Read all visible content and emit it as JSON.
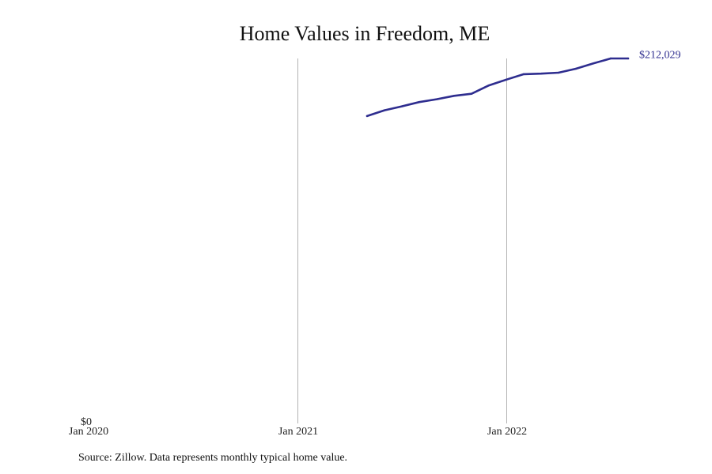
{
  "title": "Home Values in Freedom, ME",
  "source": "Source: Zillow. Data represents monthly typical home value.",
  "colors": {
    "line": "#2e2d8f",
    "gridline": "#b3b3b3",
    "text": "#111111"
  },
  "chart_data": {
    "type": "line",
    "title": "Home Values in Freedom, ME",
    "xlabel": "",
    "ylabel": "",
    "x_ticks": [
      {
        "date": "2020-01",
        "label": "Jan 2020"
      },
      {
        "date": "2021-01",
        "label": "Jan 2021"
      },
      {
        "date": "2022-01",
        "label": "Jan 2022"
      }
    ],
    "y_ticks": [
      {
        "value": 0,
        "label": "$0"
      }
    ],
    "xlim": [
      "2020-01",
      "2022-10"
    ],
    "ylim": [
      0,
      212029
    ],
    "grid": "vertical lines at year ticks",
    "legend": "none",
    "series": [
      {
        "x": [
          "2021-05",
          "2021-06",
          "2021-07",
          "2021-08",
          "2021-09",
          "2021-10",
          "2021-11",
          "2021-12",
          "2022-01",
          "2022-02",
          "2022-03",
          "2022-04",
          "2022-05",
          "2022-06",
          "2022-07",
          "2022-08"
        ],
        "values": [
          178200,
          181600,
          183900,
          186400,
          188100,
          190100,
          191300,
          196200,
          199600,
          202800,
          203100,
          203700,
          206000,
          209100,
          212029,
          212029
        ],
        "end_label": "$212,029"
      }
    ]
  }
}
